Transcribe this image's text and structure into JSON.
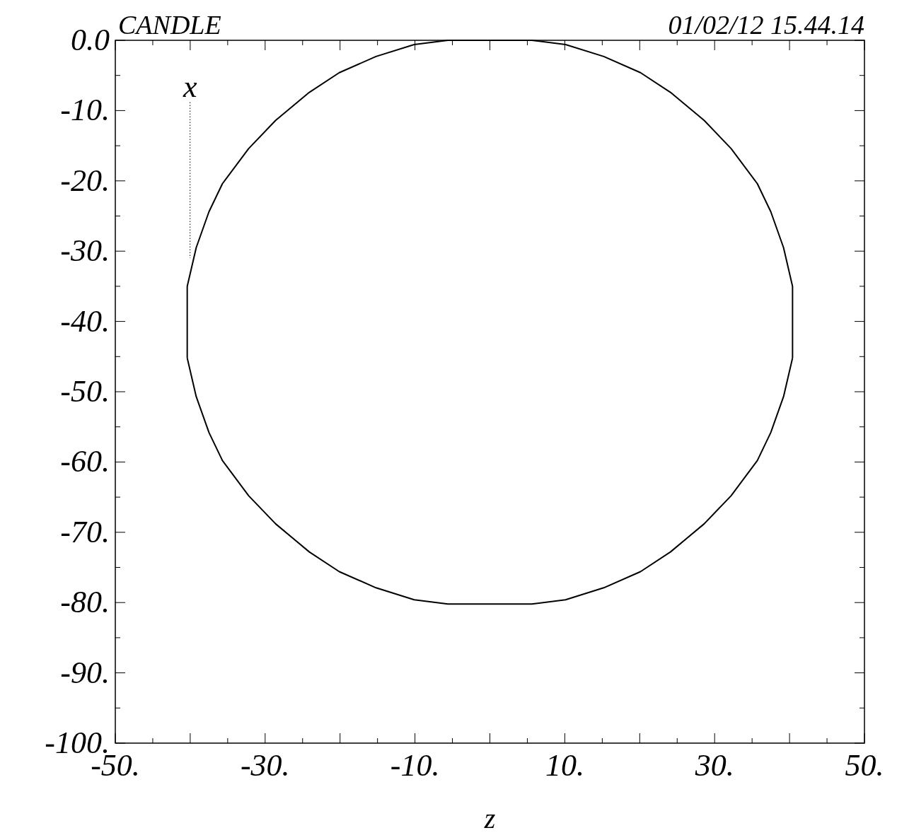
{
  "chart_data": {
    "type": "line",
    "title": "CANDLE",
    "subtitle": "01/02/12 15.44.14",
    "xlabel": "z",
    "ylabel": "x",
    "series": [
      {
        "color": "#000000",
        "x": [
          -40.4,
          -39.2,
          -37.5,
          -35.7,
          -32.2,
          -28.6,
          -24.1,
          -20.1,
          -15.2,
          -10.1,
          -5.6,
          5.6,
          10.1,
          15.2,
          20.1,
          24.1,
          28.6,
          32.2,
          35.7,
          37.5,
          39.2,
          40.4
        ],
        "values": [
          -35,
          -29.5,
          -24.4,
          -20.4,
          -15.4,
          -11.4,
          -7.4,
          -4.6,
          -2.3,
          -0.6,
          0,
          0,
          -0.6,
          -2.3,
          -4.6,
          -7.4,
          -11.4,
          -15.4,
          -20.4,
          -24.4,
          -29.5,
          -35
        ]
      },
      {
        "color": "#000000",
        "x": [
          -40.4,
          -39.2,
          -37.5,
          -35.7,
          -32.2,
          -28.6,
          -24.1,
          -20.1,
          -15.2,
          -10.1,
          -5.6,
          5.6,
          10.1,
          15.2,
          20.1,
          24.1,
          28.6,
          32.2,
          35.7,
          37.5,
          39.2,
          40.4
        ],
        "values": [
          -45.2,
          -50.7,
          -55.8,
          -59.8,
          -64.8,
          -68.8,
          -72.8,
          -75.6,
          -77.9,
          -79.6,
          -80.2,
          -80.2,
          -79.6,
          -77.9,
          -75.6,
          -72.8,
          -68.8,
          -64.8,
          -59.8,
          -55.8,
          -50.7,
          -45.2
        ]
      }
    ],
    "xlim": [
      -50,
      50
    ],
    "ylim": [
      -100,
      0
    ],
    "xticks": [
      {
        "value": -50,
        "label": "-50."
      },
      {
        "value": -40,
        "label": null
      },
      {
        "value": -30,
        "label": "-30."
      },
      {
        "value": -20,
        "label": null
      },
      {
        "value": -10,
        "label": "-10."
      },
      {
        "value": 0,
        "label": null
      },
      {
        "value": 10,
        "label": "10."
      },
      {
        "value": 20,
        "label": null
      },
      {
        "value": 30,
        "label": "30."
      },
      {
        "value": 40,
        "label": null
      },
      {
        "value": 50,
        "label": "50."
      }
    ],
    "yticks": [
      {
        "value": 0,
        "label": "0.0"
      },
      {
        "value": -10,
        "label": "-10."
      },
      {
        "value": -20,
        "label": "-20."
      },
      {
        "value": -30,
        "label": "-30."
      },
      {
        "value": -40,
        "label": "-40."
      },
      {
        "value": -50,
        "label": "-50."
      },
      {
        "value": -60,
        "label": "-60."
      },
      {
        "value": -70,
        "label": "-70."
      },
      {
        "value": -80,
        "label": "-80."
      },
      {
        "value": -90,
        "label": "-90."
      },
      {
        "value": -100,
        "label": "-100."
      }
    ],
    "grid": false,
    "marker": "none",
    "line_style": "solid"
  }
}
